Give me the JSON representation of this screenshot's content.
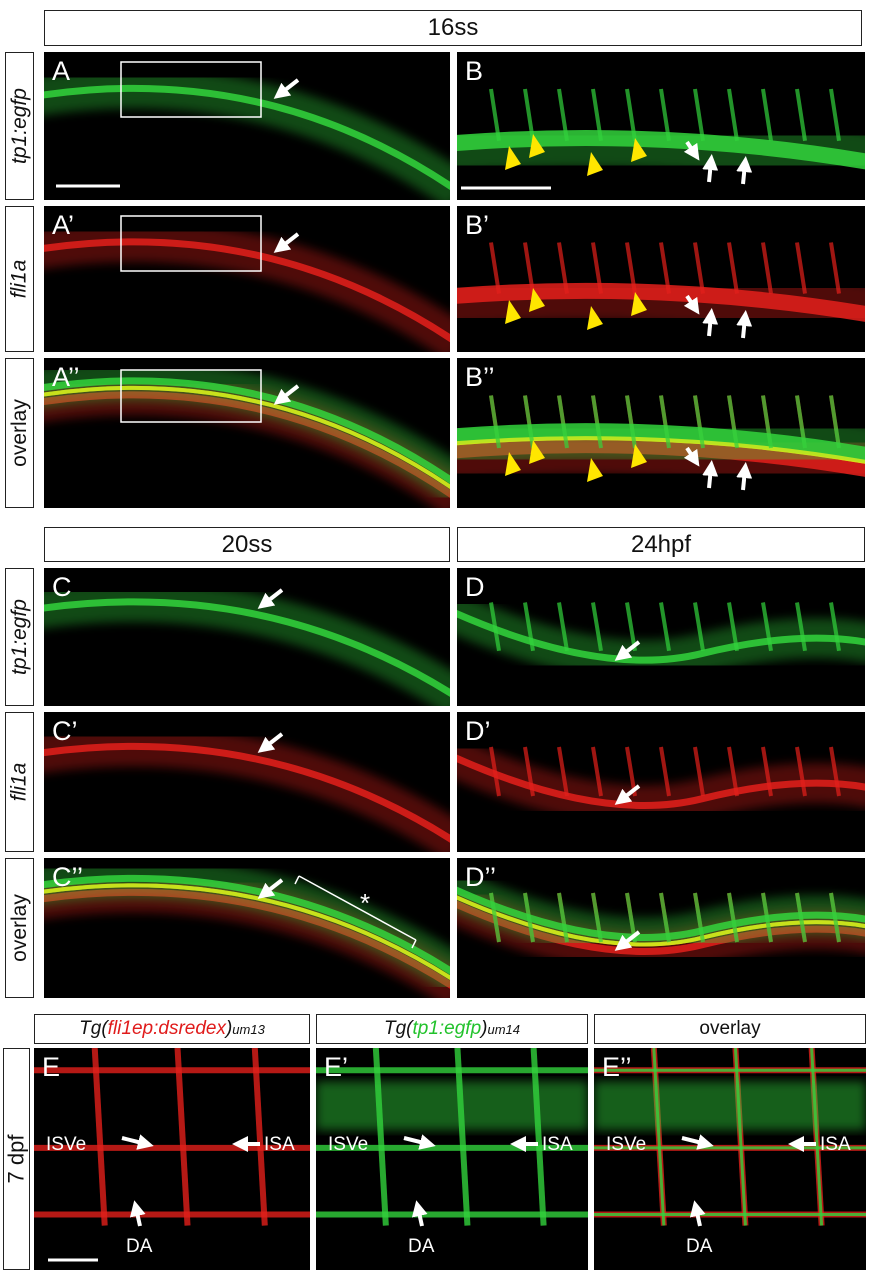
{
  "top": {
    "title": "16ss",
    "row_labels": [
      "tp1:egfp",
      "fli1a",
      "overlay"
    ],
    "panels": [
      "A",
      "B",
      "A’",
      "B’",
      "A’’",
      "B’’"
    ]
  },
  "middle": {
    "titles": [
      "20ss",
      "24hpf"
    ],
    "row_labels": [
      "tp1:egfp",
      "fli1a",
      "overlay"
    ],
    "panels": [
      "C",
      "D",
      "C’",
      "D’",
      "C’’",
      "D’’"
    ],
    "asterisk": "*"
  },
  "bottom": {
    "side_label": "7 dpf",
    "headers": [
      {
        "pre": "Tg(",
        "gene": "fli1ep:dsredex",
        "post": ")",
        "sup": "um13"
      },
      {
        "pre": "Tg(",
        "gene": "tp1:egfp",
        "post": ")",
        "sup": "um14"
      },
      {
        "text": "overlay"
      }
    ],
    "panels": [
      "E",
      "E’",
      "E’’"
    ],
    "annotations": [
      "ISVe",
      "ISA",
      "DA"
    ]
  }
}
